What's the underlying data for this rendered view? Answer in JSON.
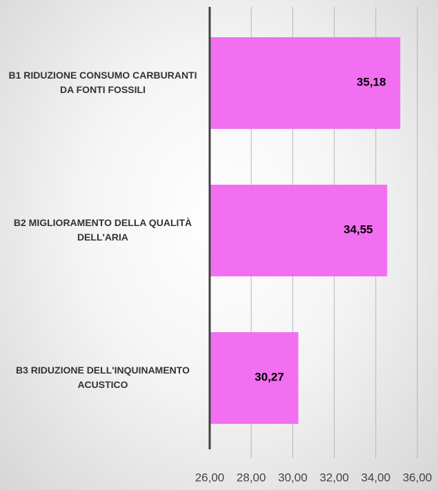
{
  "chart_data": {
    "type": "hbar",
    "categories": [
      "B1 RIDUZIONE CONSUMO CARBURANTI DA FONTI FOSSILI",
      "B2 MIGLIORAMENTO DELLA QUALITÀ DELL'ARIA",
      "B3 RIDUZIONE DELL'INQUINAMENTO ACUSTICO"
    ],
    "values": [
      35.18,
      34.55,
      30.27
    ],
    "value_labels": [
      "35,18",
      "34,55",
      "30,27"
    ],
    "color": "#f26ff2",
    "xlim": [
      26,
      36
    ],
    "xticks": [
      {
        "value": 26,
        "label": "26,00"
      },
      {
        "value": 28,
        "label": "28,00"
      },
      {
        "value": 30,
        "label": "30,00"
      },
      {
        "value": 32,
        "label": "32,00"
      },
      {
        "value": 34,
        "label": "34,00"
      },
      {
        "value": 36,
        "label": "36,00"
      }
    ],
    "grid": true
  }
}
